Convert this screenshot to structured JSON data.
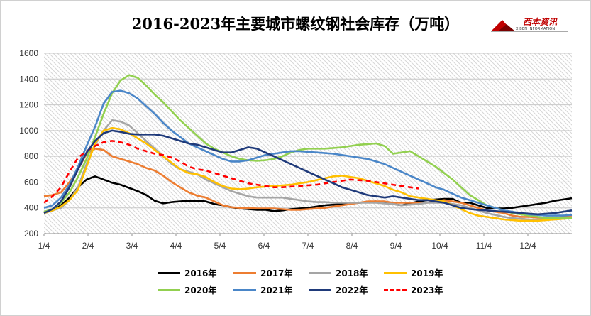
{
  "chart_data": {
    "type": "line",
    "title": "2016-2023年主要城市螺纹钢社会库存（万吨）",
    "xlabel": "",
    "ylabel": "",
    "ylim": [
      200,
      1600
    ],
    "yticks": [
      200,
      400,
      600,
      800,
      1000,
      1200,
      1400,
      1600
    ],
    "xlim": [
      0,
      50
    ],
    "xtick_labels": [
      "1/4",
      "2/4",
      "3/4",
      "4/4",
      "5/4",
      "6/4",
      "7/4",
      "8/4",
      "9/4",
      "10/4",
      "11/4",
      "12/4"
    ],
    "grid": "horizontal",
    "background": "diagonal hatch",
    "legend_position": "bottom",
    "series": [
      {
        "name": "2016年",
        "color": "#000000",
        "dash": false,
        "values": [
          360,
          380,
          420,
          480,
          560,
          620,
          645,
          620,
          595,
          580,
          555,
          530,
          500,
          455,
          435,
          445,
          450,
          455,
          455,
          450,
          430,
          420,
          405,
          395,
          390,
          385,
          385,
          375,
          380,
          390,
          395,
          400,
          410,
          420,
          425,
          430,
          435,
          440,
          445,
          450,
          440,
          430,
          420,
          435,
          450,
          460,
          465,
          470,
          470,
          440,
          440,
          420,
          400,
          395,
          395,
          400,
          410,
          420,
          430,
          440,
          455,
          465,
          475
        ]
      },
      {
        "name": "2017年",
        "color": "#ED7D31",
        "dash": false,
        "values": [
          490,
          500,
          520,
          600,
          700,
          820,
          860,
          850,
          800,
          780,
          760,
          740,
          710,
          690,
          650,
          600,
          560,
          520,
          495,
          480,
          450,
          420,
          405,
          400,
          400,
          395,
          395,
          395,
          390,
          385,
          385,
          390,
          395,
          400,
          410,
          420,
          430,
          440,
          450,
          450,
          450,
          440,
          440,
          440,
          440,
          440,
          450,
          460,
          450,
          440,
          420,
          400,
          380,
          370,
          360,
          340,
          330,
          330,
          325,
          320,
          320,
          330,
          330
        ]
      },
      {
        "name": "2018年",
        "color": "#A5A5A5",
        "dash": false,
        "values": [
          370,
          380,
          400,
          460,
          560,
          740,
          890,
          1000,
          1080,
          1070,
          1040,
          980,
          920,
          860,
          800,
          740,
          700,
          680,
          660,
          620,
          590,
          560,
          530,
          510,
          490,
          480,
          480,
          480,
          480,
          470,
          460,
          450,
          445,
          445,
          440,
          440,
          440,
          440,
          440,
          440,
          435,
          430,
          420,
          425,
          430,
          440,
          440,
          440,
          430,
          420,
          400,
          380,
          360,
          345,
          330,
          320,
          315,
          310,
          310,
          310,
          310,
          315,
          320
        ]
      },
      {
        "name": "2019年",
        "color": "#FFC000",
        "dash": false,
        "values": [
          360,
          380,
          410,
          460,
          540,
          720,
          900,
          1000,
          1020,
          1010,
          980,
          940,
          900,
          850,
          800,
          750,
          700,
          670,
          660,
          640,
          600,
          570,
          550,
          545,
          550,
          560,
          565,
          570,
          575,
          580,
          590,
          600,
          615,
          630,
          645,
          650,
          640,
          630,
          610,
          590,
          570,
          540,
          520,
          490,
          480,
          470,
          460,
          450,
          420,
          390,
          360,
          340,
          330,
          320,
          310,
          305,
          300,
          300,
          300,
          305,
          310,
          315,
          320
        ]
      },
      {
        "name": "2020年",
        "color": "#92D050",
        "dash": false,
        "values": [
          370,
          390,
          440,
          520,
          640,
          780,
          950,
          1130,
          1290,
          1390,
          1430,
          1410,
          1350,
          1280,
          1220,
          1150,
          1080,
          1020,
          960,
          900,
          860,
          830,
          800,
          780,
          770,
          765,
          770,
          780,
          800,
          830,
          850,
          860,
          860,
          860,
          865,
          870,
          880,
          890,
          895,
          900,
          880,
          820,
          830,
          840,
          800,
          760,
          720,
          670,
          620,
          560,
          500,
          460,
          420,
          400,
          380,
          360,
          350,
          340,
          330,
          320,
          320,
          320,
          320
        ]
      },
      {
        "name": "2021年",
        "color": "#4A86C8",
        "dash": false,
        "values": [
          400,
          420,
          480,
          580,
          720,
          880,
          1030,
          1210,
          1300,
          1310,
          1290,
          1250,
          1190,
          1130,
          1060,
          1000,
          950,
          900,
          870,
          840,
          810,
          780,
          760,
          760,
          770,
          790,
          810,
          820,
          830,
          840,
          840,
          835,
          830,
          825,
          820,
          810,
          800,
          790,
          780,
          760,
          740,
          710,
          680,
          650,
          620,
          590,
          560,
          540,
          510,
          480,
          460,
          440,
          420,
          400,
          380,
          370,
          360,
          350,
          345,
          340,
          340,
          340,
          345
        ]
      },
      {
        "name": "2022年",
        "color": "#1F3A7A",
        "dash": false,
        "values": [
          360,
          390,
          450,
          560,
          700,
          830,
          920,
          980,
          1000,
          990,
          975,
          970,
          970,
          970,
          960,
          940,
          920,
          900,
          890,
          870,
          850,
          830,
          830,
          850,
          870,
          860,
          830,
          800,
          770,
          740,
          710,
          680,
          650,
          620,
          590,
          560,
          540,
          520,
          500,
          490,
          480,
          490,
          480,
          470,
          460,
          460,
          450,
          440,
          420,
          400,
          390,
          385,
          380,
          375,
          370,
          365,
          360,
          355,
          350,
          355,
          360,
          370,
          380
        ]
      },
      {
        "name": "2023年",
        "color": "#FF0000",
        "dash": true,
        "values": [
          440,
          490,
          560,
          680,
          790,
          840,
          880,
          910,
          920,
          910,
          890,
          860,
          840,
          820,
          810,
          790,
          760,
          720,
          700,
          690,
          670,
          650,
          630,
          610,
          590,
          580,
          570,
          560,
          560,
          565,
          570,
          575,
          580,
          590,
          600,
          610,
          620,
          615,
          610,
          600,
          590,
          580,
          570,
          560,
          550
        ]
      }
    ]
  }
}
